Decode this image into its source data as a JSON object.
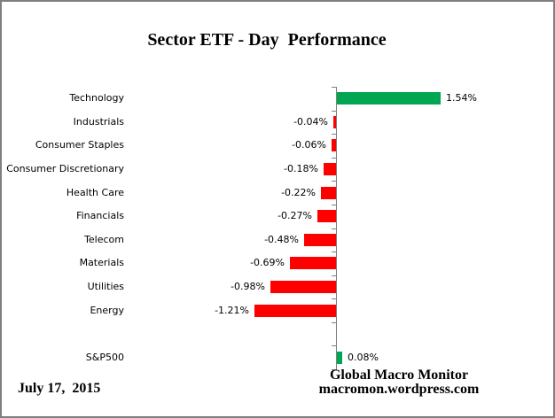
{
  "title": "Sector ETF - Day  Performance",
  "footer": {
    "date": "July 17,  2015",
    "credit_line1": "Global Macro Monitor",
    "credit_line2": "macromon.wordpress.com"
  },
  "chart_data": {
    "type": "bar",
    "orientation": "horizontal",
    "title": "Sector ETF - Day  Performance",
    "unit": "percent",
    "grid": false,
    "legend": false,
    "categories": [
      "Technology",
      "Industrials",
      "Consumer Staples",
      "Consumer Discretionary",
      "Health Care",
      "Financials",
      "Telecom",
      "Materials",
      "Utilities",
      "Energy",
      "",
      "S&P500"
    ],
    "values": [
      1.54,
      -0.04,
      -0.06,
      -0.18,
      -0.22,
      -0.27,
      -0.48,
      -0.69,
      -0.98,
      -1.21,
      null,
      0.08
    ],
    "value_labels": [
      "1.54%",
      "-0.04%",
      "-0.06%",
      "-0.18%",
      "-0.22%",
      "-0.27%",
      "-0.48%",
      "-0.69%",
      "-0.98%",
      "-1.21%",
      "",
      "0.08%"
    ],
    "positive_color": "#00A651",
    "negative_color": "#FF0000",
    "axis_color": "#808080"
  }
}
